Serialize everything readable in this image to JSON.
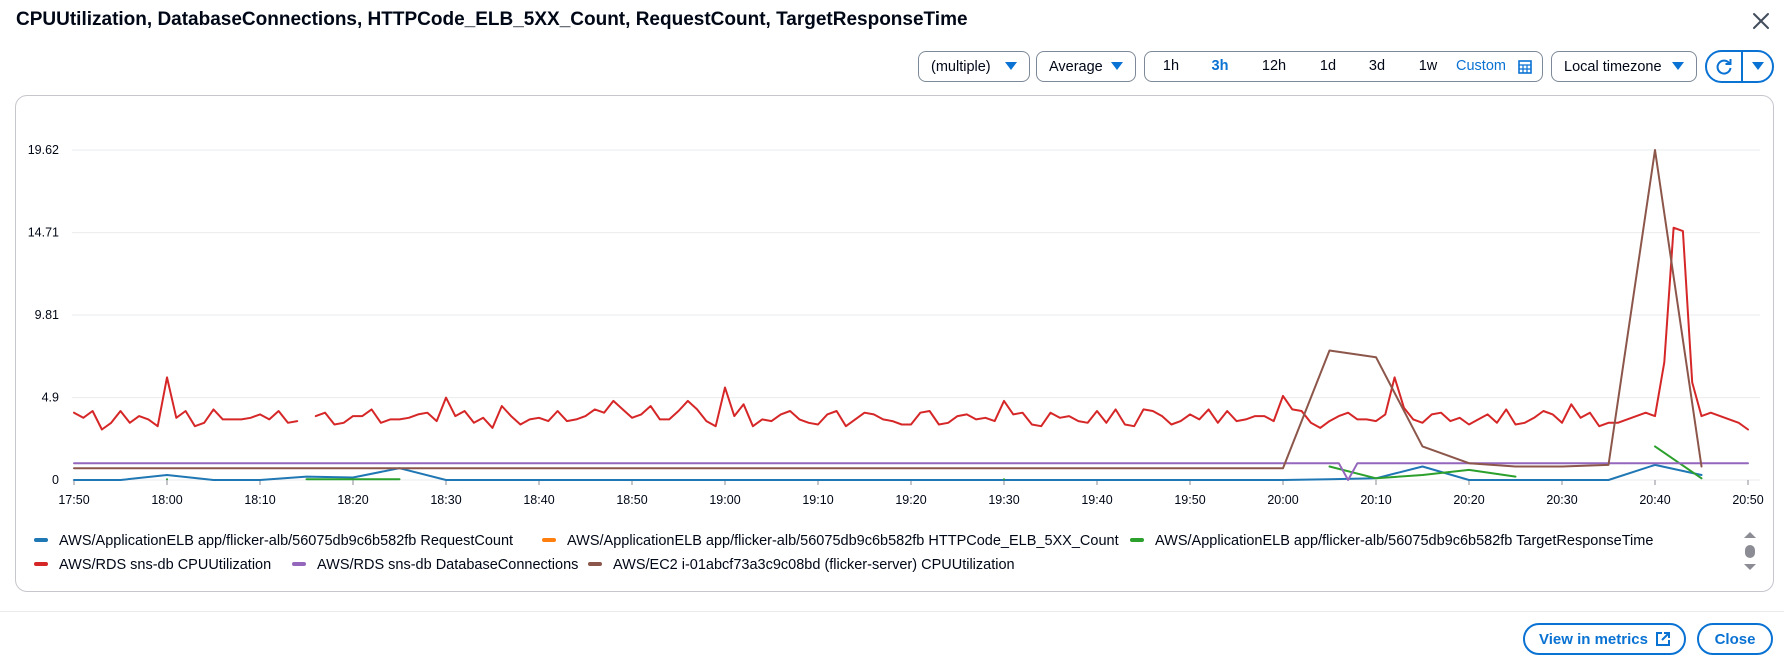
{
  "header": {
    "title": "CPUUtilization, DatabaseConnections, HTTPCode_ELB_5XX_Count, RequestCount, TargetResponseTime"
  },
  "toolbar": {
    "statistic_group": "(multiple)",
    "statistic": "Average",
    "ranges": [
      "1h",
      "3h",
      "12h",
      "1d",
      "3d",
      "1w",
      "Custom"
    ],
    "selected_range": "3h",
    "timezone": "Local timezone"
  },
  "chart_data": {
    "type": "line",
    "xlim": [
      "17:50",
      "20:50"
    ],
    "xticks": [
      "17:50",
      "18:00",
      "18:10",
      "18:20",
      "18:30",
      "18:40",
      "18:50",
      "19:00",
      "19:10",
      "19:20",
      "19:30",
      "19:40",
      "19:50",
      "20:00",
      "20:10",
      "20:20",
      "20:30",
      "20:40",
      "20:50"
    ],
    "ylim": [
      0,
      21.7
    ],
    "yticks": [
      0,
      4.9,
      9.81,
      14.71,
      19.62
    ],
    "grid": true,
    "series": [
      {
        "name": "AWS/ApplicationELB app/flicker-alb/56075db9c6b582fb RequestCount",
        "color": "#1f77b4",
        "x": [
          "17:50",
          "17:55",
          "18:00",
          "18:05",
          "18:10",
          "18:15",
          "18:20",
          "18:25",
          "18:30",
          "18:40",
          "18:50",
          "19:00",
          "19:10",
          "19:20",
          "19:30",
          "19:40",
          "19:50",
          "20:00",
          "20:05",
          "20:10",
          "20:15",
          "20:20",
          "20:25",
          "20:30",
          "20:35",
          "20:40",
          "20:45"
        ],
        "values": [
          0,
          0,
          0.3,
          0,
          0,
          0.2,
          0.15,
          0.7,
          0,
          0,
          0,
          0,
          0,
          0,
          0,
          0,
          0,
          0,
          0.05,
          0.1,
          0.8,
          0,
          0,
          0,
          0,
          0.9,
          0.3
        ]
      },
      {
        "name": "AWS/ApplicationELB app/flicker-alb/56075db9c6b582fb HTTPCode_ELB_5XX_Count",
        "color": "#ff7f0e",
        "x": [],
        "values": []
      },
      {
        "name": "AWS/ApplicationELB app/flicker-alb/56075db9c6b582fb TargetResponseTime",
        "color": "#2ca02c",
        "x": [
          "18:00",
          "18:05",
          "18:15",
          "18:20",
          "18:25",
          "18:30",
          "19:30",
          "19:35",
          "20:05",
          "20:10",
          "20:15",
          "20:20",
          "20:25",
          "20:30",
          "20:40",
          "20:45"
        ],
        "values": [
          0.05,
          null,
          0.05,
          0.05,
          0.05,
          null,
          0.05,
          null,
          0.8,
          0.1,
          0.3,
          0.6,
          0.2,
          null,
          2.0,
          0.1
        ]
      },
      {
        "name": "AWS/RDS sns-db CPUUtilization",
        "color": "#d62728",
        "x": [
          "17:50",
          "17:51",
          "17:52",
          "17:53",
          "17:54",
          "17:55",
          "17:56",
          "17:57",
          "17:58",
          "17:59",
          "18:00",
          "18:01",
          "18:02",
          "18:03",
          "18:04",
          "18:05",
          "18:06",
          "18:07",
          "18:08",
          "18:09",
          "18:10",
          "18:11",
          "18:12",
          "18:13",
          "18:14",
          "18:15",
          "18:16",
          "18:17",
          "18:18",
          "18:19",
          "18:20",
          "18:21",
          "18:22",
          "18:23",
          "18:24",
          "18:25",
          "18:26",
          "18:27",
          "18:28",
          "18:29",
          "18:30",
          "18:31",
          "18:32",
          "18:33",
          "18:34",
          "18:35",
          "18:36",
          "18:37",
          "18:38",
          "18:39",
          "18:40",
          "18:41",
          "18:42",
          "18:43",
          "18:44",
          "18:45",
          "18:46",
          "18:47",
          "18:48",
          "18:49",
          "18:50",
          "18:51",
          "18:52",
          "18:53",
          "18:54",
          "18:55",
          "18:56",
          "18:57",
          "18:58",
          "18:59",
          "19:00",
          "19:01",
          "19:02",
          "19:03",
          "19:04",
          "19:05",
          "19:06",
          "19:07",
          "19:08",
          "19:09",
          "19:10",
          "19:11",
          "19:12",
          "19:13",
          "19:14",
          "19:15",
          "19:16",
          "19:17",
          "19:18",
          "19:19",
          "19:20",
          "19:21",
          "19:22",
          "19:23",
          "19:24",
          "19:25",
          "19:26",
          "19:27",
          "19:28",
          "19:29",
          "19:30",
          "19:31",
          "19:32",
          "19:33",
          "19:34",
          "19:35",
          "19:36",
          "19:37",
          "19:38",
          "19:39",
          "19:40",
          "19:41",
          "19:42",
          "19:43",
          "19:44",
          "19:45",
          "19:46",
          "19:47",
          "19:48",
          "19:49",
          "19:50",
          "19:51",
          "19:52",
          "19:53",
          "19:54",
          "19:55",
          "19:56",
          "19:57",
          "19:58",
          "19:59",
          "20:00",
          "20:01",
          "20:02",
          "20:03",
          "20:04",
          "20:05",
          "20:06",
          "20:07",
          "20:08",
          "20:09",
          "20:10",
          "20:11",
          "20:12",
          "20:13",
          "20:14",
          "20:15",
          "20:16",
          "20:17",
          "20:18",
          "20:19",
          "20:20",
          "20:21",
          "20:22",
          "20:23",
          "20:24",
          "20:25",
          "20:26",
          "20:27",
          "20:28",
          "20:29",
          "20:30",
          "20:31",
          "20:32",
          "20:33",
          "20:34",
          "20:35",
          "20:36",
          "20:37",
          "20:38",
          "20:39",
          "20:40",
          "20:41",
          "20:42",
          "20:43",
          "20:44",
          "20:45",
          "20:46",
          "20:47",
          "20:48",
          "20:49",
          "20:50"
        ],
        "values": [
          4.0,
          3.7,
          4.1,
          3.0,
          3.4,
          4.1,
          3.4,
          3.8,
          3.6,
          3.2,
          6.1,
          3.7,
          4.1,
          3.2,
          3.4,
          4.2,
          3.6,
          3.6,
          3.6,
          3.7,
          3.9,
          3.6,
          4.1,
          3.4,
          3.5,
          null,
          3.8,
          4.0,
          3.3,
          3.4,
          3.8,
          3.8,
          4.2,
          3.4,
          3.6,
          3.6,
          3.7,
          3.9,
          4.0,
          3.5,
          4.9,
          3.8,
          4.1,
          3.4,
          3.7,
          3.1,
          4.4,
          3.8,
          3.3,
          3.6,
          3.7,
          3.5,
          4.1,
          3.5,
          3.6,
          3.8,
          4.2,
          4.0,
          4.7,
          4.2,
          3.7,
          3.9,
          4.4,
          3.6,
          3.6,
          4.1,
          4.7,
          4.2,
          3.5,
          3.2,
          5.5,
          3.8,
          4.5,
          3.2,
          3.6,
          3.5,
          3.9,
          4.1,
          3.6,
          3.4,
          3.3,
          3.9,
          4.1,
          3.2,
          3.6,
          4.0,
          3.9,
          3.6,
          3.5,
          3.3,
          3.3,
          4.0,
          4.1,
          3.3,
          3.4,
          3.8,
          3.9,
          3.6,
          3.7,
          3.5,
          4.7,
          3.9,
          4.0,
          3.3,
          3.2,
          4.0,
          3.7,
          3.8,
          3.5,
          3.4,
          4.1,
          3.4,
          4.2,
          3.3,
          3.2,
          4.2,
          4.1,
          3.8,
          3.3,
          3.5,
          3.9,
          3.6,
          4.2,
          3.4,
          4.1,
          3.5,
          3.6,
          3.8,
          3.8,
          3.5,
          5.0,
          4.2,
          4.1,
          3.4,
          3.1,
          3.5,
          3.8,
          4.0,
          3.6,
          3.6,
          3.5,
          3.9,
          6.1,
          4.3,
          3.6,
          3.4,
          3.9,
          4.0,
          3.5,
          3.7,
          3.3,
          3.6,
          3.9,
          3.4,
          4.2,
          3.3,
          3.4,
          3.7,
          4.1,
          3.9,
          3.4,
          4.5,
          3.7,
          4.0,
          3.2,
          3.4,
          3.4,
          3.6,
          3.8,
          4.0,
          3.8,
          7.0,
          15.0,
          14.8,
          5.8,
          3.8,
          4.0,
          3.8,
          3.6,
          3.4,
          3.0
        ]
      },
      {
        "name": "AWS/RDS sns-db DatabaseConnections",
        "color": "#9467bd",
        "x": [
          "17:50",
          "18:00",
          "18:10",
          "18:20",
          "18:30",
          "18:40",
          "18:50",
          "19:00",
          "19:10",
          "19:20",
          "19:30",
          "19:40",
          "19:50",
          "20:00",
          "20:06",
          "20:07",
          "20:08",
          "20:10",
          "20:20",
          "20:30",
          "20:40",
          "20:50"
        ],
        "values": [
          1,
          1,
          1,
          1,
          1,
          1,
          1,
          1,
          1,
          1,
          1,
          1,
          1,
          1,
          1,
          0,
          1,
          1,
          1,
          1,
          1,
          1
        ]
      },
      {
        "name": "AWS/EC2 i-01abcf73a3c9c08bd (flicker-server) CPUUtilization",
        "color": "#8c564b",
        "x": [
          "17:50",
          "17:55",
          "18:00",
          "18:05",
          "18:10",
          "18:15",
          "18:20",
          "18:25",
          "18:30",
          "18:35",
          "18:40",
          "18:45",
          "18:50",
          "18:55",
          "19:00",
          "19:05",
          "19:10",
          "19:15",
          "19:20",
          "19:25",
          "19:30",
          "19:35",
          "19:40",
          "19:45",
          "19:50",
          "19:55",
          "20:00",
          "20:05",
          "20:10",
          "20:15",
          "20:20",
          "20:25",
          "20:30",
          "20:35",
          "20:40",
          "20:45"
        ],
        "values": [
          0.7,
          0.7,
          0.7,
          0.7,
          0.7,
          0.7,
          0.7,
          0.7,
          0.7,
          0.7,
          0.7,
          0.7,
          0.7,
          0.7,
          0.7,
          0.7,
          0.7,
          0.7,
          0.7,
          0.7,
          0.7,
          0.7,
          0.7,
          0.7,
          0.7,
          0.7,
          0.7,
          7.7,
          7.3,
          2.0,
          1.0,
          0.8,
          0.8,
          0.9,
          19.62,
          0.8
        ]
      }
    ]
  },
  "footer": {
    "view_in_metrics": "View in metrics",
    "close": "Close"
  }
}
